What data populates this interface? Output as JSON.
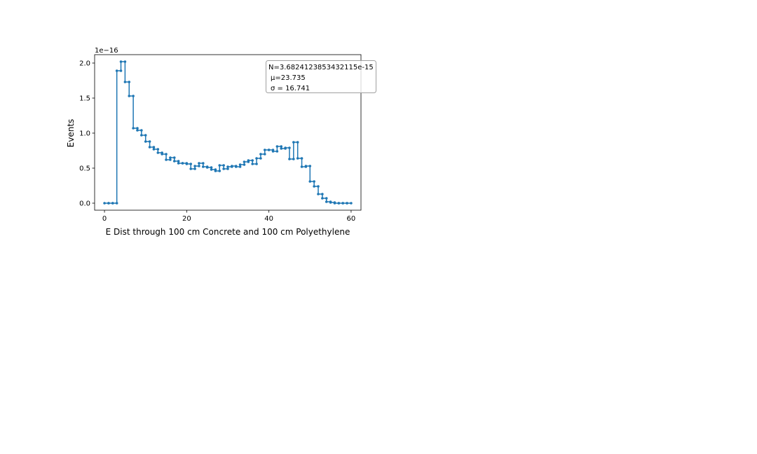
{
  "chart_data": {
    "type": "line",
    "style": "step-histogram-with-markers",
    "title": "",
    "xlabel": "E Dist through 100 cm Concrete and 100 cm Polyethylene",
    "ylabel": "Events",
    "y_offset_label": "1e−16",
    "xlim": [
      -2.4,
      62.4
    ],
    "ylim": [
      -0.1,
      2.12
    ],
    "xticks": [
      0,
      20,
      40,
      60
    ],
    "xtick_labels": [
      "0",
      "20",
      "40",
      "60"
    ],
    "yticks": [
      0.0,
      0.5,
      1.0,
      1.5,
      2.0
    ],
    "ytick_labels": [
      "0.0",
      "0.5",
      "1.0",
      "1.5",
      "2.0"
    ],
    "grid": false,
    "color": "#1f77b4",
    "stats_box": {
      "lines": [
        "N=3.6824123853432115e-15",
        "μ=23.735",
        "σ = 16.741"
      ]
    },
    "series": [
      {
        "bins": [
          [
            0,
            1,
            0.0
          ],
          [
            1,
            2,
            0.0
          ],
          [
            2,
            3,
            0.0
          ],
          [
            3,
            4,
            1.89
          ],
          [
            4,
            5,
            2.02
          ],
          [
            5,
            6,
            1.73
          ],
          [
            6,
            7,
            1.53
          ],
          [
            7,
            8,
            1.07
          ],
          [
            8,
            9,
            1.04
          ],
          [
            9,
            10,
            0.97
          ],
          [
            10,
            11,
            0.88
          ],
          [
            11,
            12,
            0.8
          ],
          [
            12,
            13,
            0.77
          ],
          [
            13,
            14,
            0.72
          ],
          [
            14,
            15,
            0.7
          ],
          [
            15,
            16,
            0.62
          ],
          [
            16,
            17,
            0.65
          ],
          [
            17,
            18,
            0.6
          ],
          [
            18,
            19,
            0.57
          ],
          [
            19,
            20,
            0.57
          ],
          [
            20,
            21,
            0.56
          ],
          [
            21,
            22,
            0.49
          ],
          [
            22,
            23,
            0.53
          ],
          [
            23,
            24,
            0.57
          ],
          [
            24,
            25,
            0.52
          ],
          [
            25,
            26,
            0.51
          ],
          [
            26,
            27,
            0.48
          ],
          [
            27,
            28,
            0.46
          ],
          [
            28,
            29,
            0.54
          ],
          [
            29,
            30,
            0.49
          ],
          [
            30,
            31,
            0.52
          ],
          [
            31,
            32,
            0.53
          ],
          [
            32,
            33,
            0.52
          ],
          [
            33,
            34,
            0.55
          ],
          [
            34,
            35,
            0.59
          ],
          [
            35,
            36,
            0.61
          ],
          [
            36,
            37,
            0.56
          ],
          [
            37,
            38,
            0.64
          ],
          [
            38,
            39,
            0.7
          ],
          [
            39,
            40,
            0.76
          ],
          [
            40,
            41,
            0.76
          ],
          [
            41,
            42,
            0.74
          ],
          [
            42,
            43,
            0.81
          ],
          [
            43,
            44,
            0.78
          ],
          [
            44,
            45,
            0.79
          ],
          [
            45,
            46,
            0.63
          ],
          [
            46,
            47,
            0.87
          ],
          [
            47,
            48,
            0.64
          ],
          [
            48,
            49,
            0.52
          ],
          [
            49,
            50,
            0.53
          ],
          [
            50,
            51,
            0.31
          ],
          [
            51,
            52,
            0.24
          ],
          [
            52,
            53,
            0.13
          ],
          [
            53,
            54,
            0.07
          ],
          [
            54,
            55,
            0.02
          ],
          [
            55,
            56,
            0.01
          ],
          [
            56,
            57,
            0.0
          ],
          [
            57,
            58,
            0.0
          ],
          [
            58,
            59,
            0.0
          ],
          [
            59,
            60,
            0.0
          ]
        ]
      }
    ]
  }
}
